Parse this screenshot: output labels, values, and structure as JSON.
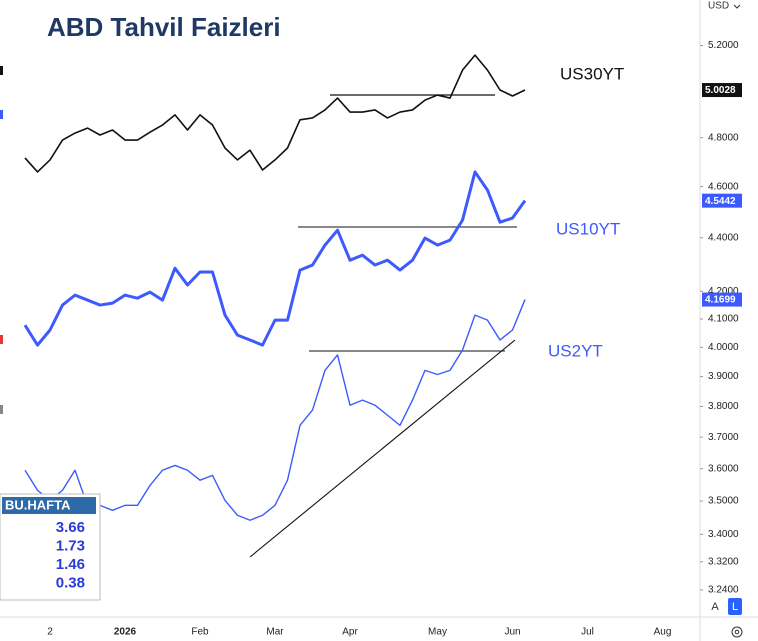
{
  "chart_data": {
    "type": "line",
    "title": "ABD Tahvil Faizleri",
    "currency": "USD",
    "log_scale": true,
    "grid": false,
    "categories": [
      null,
      null,
      "2",
      null,
      null,
      null,
      null,
      null,
      "2026",
      null,
      null,
      null,
      null,
      null,
      "Feb",
      null,
      null,
      null,
      null,
      null,
      "Mar",
      null,
      null,
      null,
      null,
      null,
      "Apr",
      null,
      null,
      null,
      null,
      null,
      null,
      "May",
      null,
      null,
      null,
      null,
      null,
      "Jun",
      null,
      null,
      null,
      null,
      null,
      "Jul",
      null,
      null,
      null,
      null,
      null,
      "Aug",
      null,
      null
    ],
    "series": [
      {
        "name": "US30YT",
        "color": "#111111",
        "width": 1.6,
        "values": [
          4.716,
          4.659,
          4.708,
          4.79,
          4.819,
          4.84,
          4.811,
          4.832,
          4.79,
          4.79,
          4.823,
          4.853,
          4.896,
          4.832,
          4.896,
          4.853,
          4.757,
          4.708,
          4.748,
          4.667,
          4.708,
          4.757,
          4.875,
          4.883,
          4.917,
          4.968,
          4.908,
          4.908,
          4.917,
          4.883,
          4.908,
          4.917,
          4.959,
          4.981,
          4.968,
          5.09,
          5.157,
          5.09,
          5.003,
          4.977,
          5.0028,
          null,
          null,
          null,
          null,
          null,
          null,
          null,
          null,
          null,
          null,
          null,
          null,
          null
        ]
      },
      {
        "name": "US10YT",
        "color": "#3d5afe",
        "width": 3,
        "values": [
          4.078,
          4.008,
          4.061,
          4.15,
          4.186,
          4.168,
          4.15,
          4.157,
          4.186,
          4.175,
          4.197,
          4.168,
          4.285,
          4.223,
          4.271,
          4.271,
          4.114,
          4.043,
          4.026,
          4.008,
          4.096,
          4.096,
          4.278,
          4.297,
          4.372,
          4.429,
          4.315,
          4.334,
          4.297,
          4.315,
          4.278,
          4.315,
          4.399,
          4.372,
          4.391,
          4.468,
          4.659,
          4.586,
          4.46,
          4.476,
          4.5442,
          null,
          null,
          null,
          null,
          null,
          null,
          null,
          null,
          null,
          null,
          null,
          null,
          null
        ]
      },
      {
        "name": "US2YT",
        "color": "#3d5afe",
        "width": 1.4,
        "values": [
          3.595,
          3.533,
          3.502,
          3.533,
          3.595,
          3.487,
          3.487,
          3.472,
          3.487,
          3.487,
          3.548,
          3.595,
          3.61,
          3.595,
          3.564,
          3.579,
          3.502,
          3.457,
          3.442,
          3.457,
          3.487,
          3.564,
          3.738,
          3.788,
          3.921,
          3.974,
          3.804,
          3.821,
          3.804,
          3.771,
          3.738,
          3.821,
          3.921,
          3.907,
          3.921,
          3.991,
          4.114,
          4.096,
          4.026,
          4.061,
          4.1699,
          null,
          null,
          null,
          null,
          null,
          null,
          null,
          null,
          null,
          null,
          null,
          null,
          null
        ]
      }
    ],
    "ylim": [
      3.17,
      5.41
    ],
    "yticks": [
      {
        "value": 5.2,
        "label": "5.2000"
      },
      {
        "value": 4.8,
        "label": "4.8000"
      },
      {
        "value": 4.6,
        "label": "4.6000"
      },
      {
        "value": 4.4,
        "label": "4.4000"
      },
      {
        "value": 4.2,
        "label": "4.2000"
      },
      {
        "value": 4.1,
        "label": "4.1000"
      },
      {
        "value": 4.0,
        "label": "4.0000"
      },
      {
        "value": 3.9,
        "label": "3.9000"
      },
      {
        "value": 3.8,
        "label": "3.8000"
      },
      {
        "value": 3.7,
        "label": "3.7000"
      },
      {
        "value": 3.6,
        "label": "3.6000"
      },
      {
        "value": 3.5,
        "label": "3.5000"
      },
      {
        "value": 3.4,
        "label": "3.4000"
      },
      {
        "value": 3.32,
        "label": "3.3200"
      },
      {
        "value": 3.24,
        "label": "3.2400"
      }
    ],
    "side_table": {
      "header": "BU.HAFTA",
      "values": [
        3.66,
        1.73,
        1.46,
        0.38
      ]
    },
    "buttons": [
      "A",
      "L"
    ]
  }
}
